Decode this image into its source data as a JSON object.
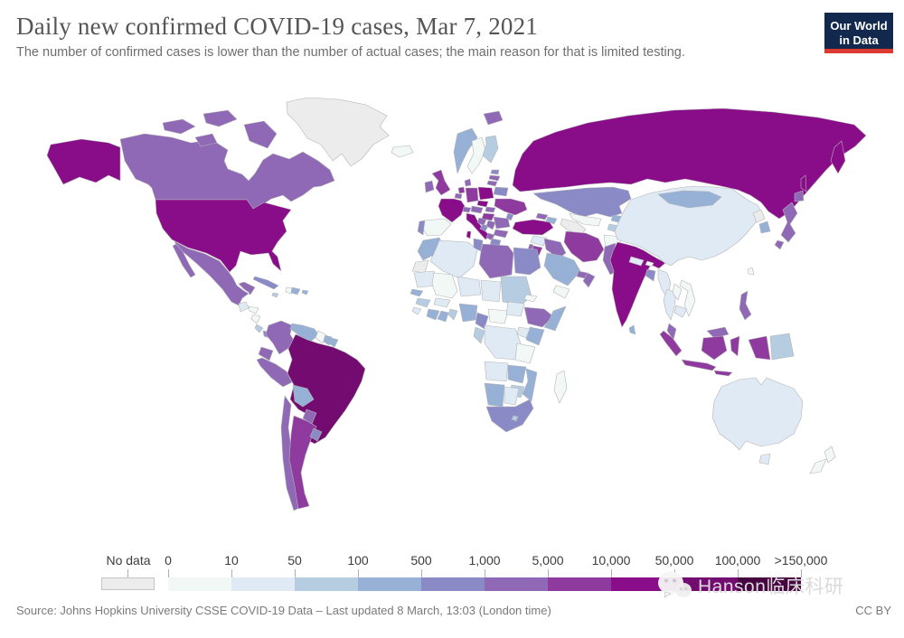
{
  "header": {
    "title": "Daily new confirmed COVID-19 cases, Mar 7, 2021",
    "subtitle": "The number of confirmed cases is lower than the number of actual cases; the main reason for that is limited testing.",
    "logo": {
      "line1": "Our World",
      "line2": "in Data"
    }
  },
  "footer": {
    "source": "Source: Johns Hopkins University CSSE COVID-19 Data – Last updated 8 March, 13:03 (London time)",
    "license": "CC BY"
  },
  "watermark": {
    "text": "Hanson临床科研"
  },
  "chart_data": {
    "type": "heatmap",
    "subtype": "choropleth-world-map",
    "title": "Daily new confirmed COVID-19 cases",
    "date": "Mar 7, 2021",
    "legend": {
      "no_data_label": "No data",
      "no_data_color": "#ececec",
      "tick_labels": [
        "0",
        "10",
        "50",
        "100",
        "500",
        "1,000",
        "5,000",
        "10,000",
        "50,000",
        "100,000",
        ">150,000"
      ],
      "colors": [
        "#f1f8f5",
        "#dfeaf4",
        "#b5cce1",
        "#96b1d5",
        "#8a8bc6",
        "#9069b6",
        "#8e3a9e",
        "#890c89",
        "#740b71",
        "#460441"
      ],
      "bucket_ranges": [
        "0–10",
        "10–50",
        "50–100",
        "100–500",
        "500–1,000",
        "1,000–5,000",
        "5,000–10,000",
        "10,000–50,000",
        "50,000–100,000",
        "100,000–>150,000"
      ]
    },
    "countries": {
      "greenland": -1,
      "canada": 5,
      "united-states": 7,
      "mexico": 5,
      "guatemala": 1,
      "honduras": 0,
      "nicaragua": 0,
      "costa-rica": 2,
      "panama": 4,
      "cuba": 4,
      "jamaica": 2,
      "haiti": 0,
      "dominican-republic": 3,
      "puerto-rico": 3,
      "colombia": 5,
      "venezuela": 3,
      "guyana": 0,
      "suriname": 3,
      "french-guiana": 3,
      "ecuador": 5,
      "peru": 5,
      "brazil": 8,
      "bolivia": 3,
      "paraguay": 5,
      "chile": 5,
      "argentina": 6,
      "uruguay": 4,
      "iceland": 0,
      "ireland": 5,
      "united-kingdom": 6,
      "portugal": 4,
      "spain": 0,
      "france": 7,
      "belgium": 5,
      "netherlands": 6,
      "germany": 6,
      "denmark": 5,
      "norway": 3,
      "sweden": 0,
      "finland": 2,
      "svalbard": 5,
      "estonia": 4,
      "latvia": 5,
      "lithuania": 5,
      "belarus": 4,
      "poland": 7,
      "czechia": 7,
      "slovakia": 5,
      "austria": 5,
      "switzerland": 5,
      "hungary": 6,
      "italy": 7,
      "croatia": 5,
      "bosnia": 4,
      "serbia": 5,
      "albania": 5,
      "greece": 4,
      "bulgaria": 5,
      "romania": 5,
      "moldova": 4,
      "ukraine": 6,
      "russia": 7,
      "kazakhstan": 4,
      "uzbekistan": 0,
      "turkmenistan": -1,
      "kyrgyzstan": 3,
      "tajikistan": 2,
      "georgia": 5,
      "azerbaijan": 3,
      "armenia": 3,
      "turkey": 7,
      "syria": 1,
      "israel": 5,
      "jordan": 6,
      "iraq": 5,
      "iran": 6,
      "saudi-arabia": 3,
      "yemen": 0,
      "oman": 5,
      "united-arab-emirates": 5,
      "afghanistan": 0,
      "pakistan": 5,
      "india": 7,
      "nepal": 1,
      "bhutan": 0,
      "bangladesh": 4,
      "sri-lanka": 3,
      "myanmar": 1,
      "thailand": 1,
      "laos": 0,
      "vietnam": 0,
      "cambodia": 1,
      "malaysia": 5,
      "indonesia": 6,
      "papua-new-guinea": 2,
      "philippines": 5,
      "taiwan": 0,
      "china": 1,
      "mongolia": 3,
      "north-korea": -1,
      "south-korea": 3,
      "japan": 5,
      "morocco": 3,
      "western-sahara": -1,
      "algeria": 1,
      "tunisia": 4,
      "libya": 5,
      "egypt": 4,
      "mauritania": 1,
      "mali": 0,
      "niger": 1,
      "chad": 1,
      "sudan": 2,
      "eritrea": 0,
      "senegal": 3,
      "guinea": 2,
      "sierra-leone": 1,
      "ivory-coast": 3,
      "ghana": 3,
      "burkina-faso": 1,
      "togo-benin": 2,
      "nigeria": 3,
      "cameroon": 4,
      "central-african-republic": 0,
      "south-sudan": 1,
      "ethiopia": 5,
      "somalia": 3,
      "kenya": 3,
      "uganda": 1,
      "dr-congo": 1,
      "congo-gabon": 2,
      "tanzania": 0,
      "angola": 1,
      "zambia": 3,
      "mozambique": 3,
      "zimbabwe": 2,
      "namibia": 3,
      "botswana": 1,
      "south-africa": 4,
      "lesotho": 2,
      "madagascar": 0,
      "australia": 1,
      "new-zealand": 0
    }
  }
}
